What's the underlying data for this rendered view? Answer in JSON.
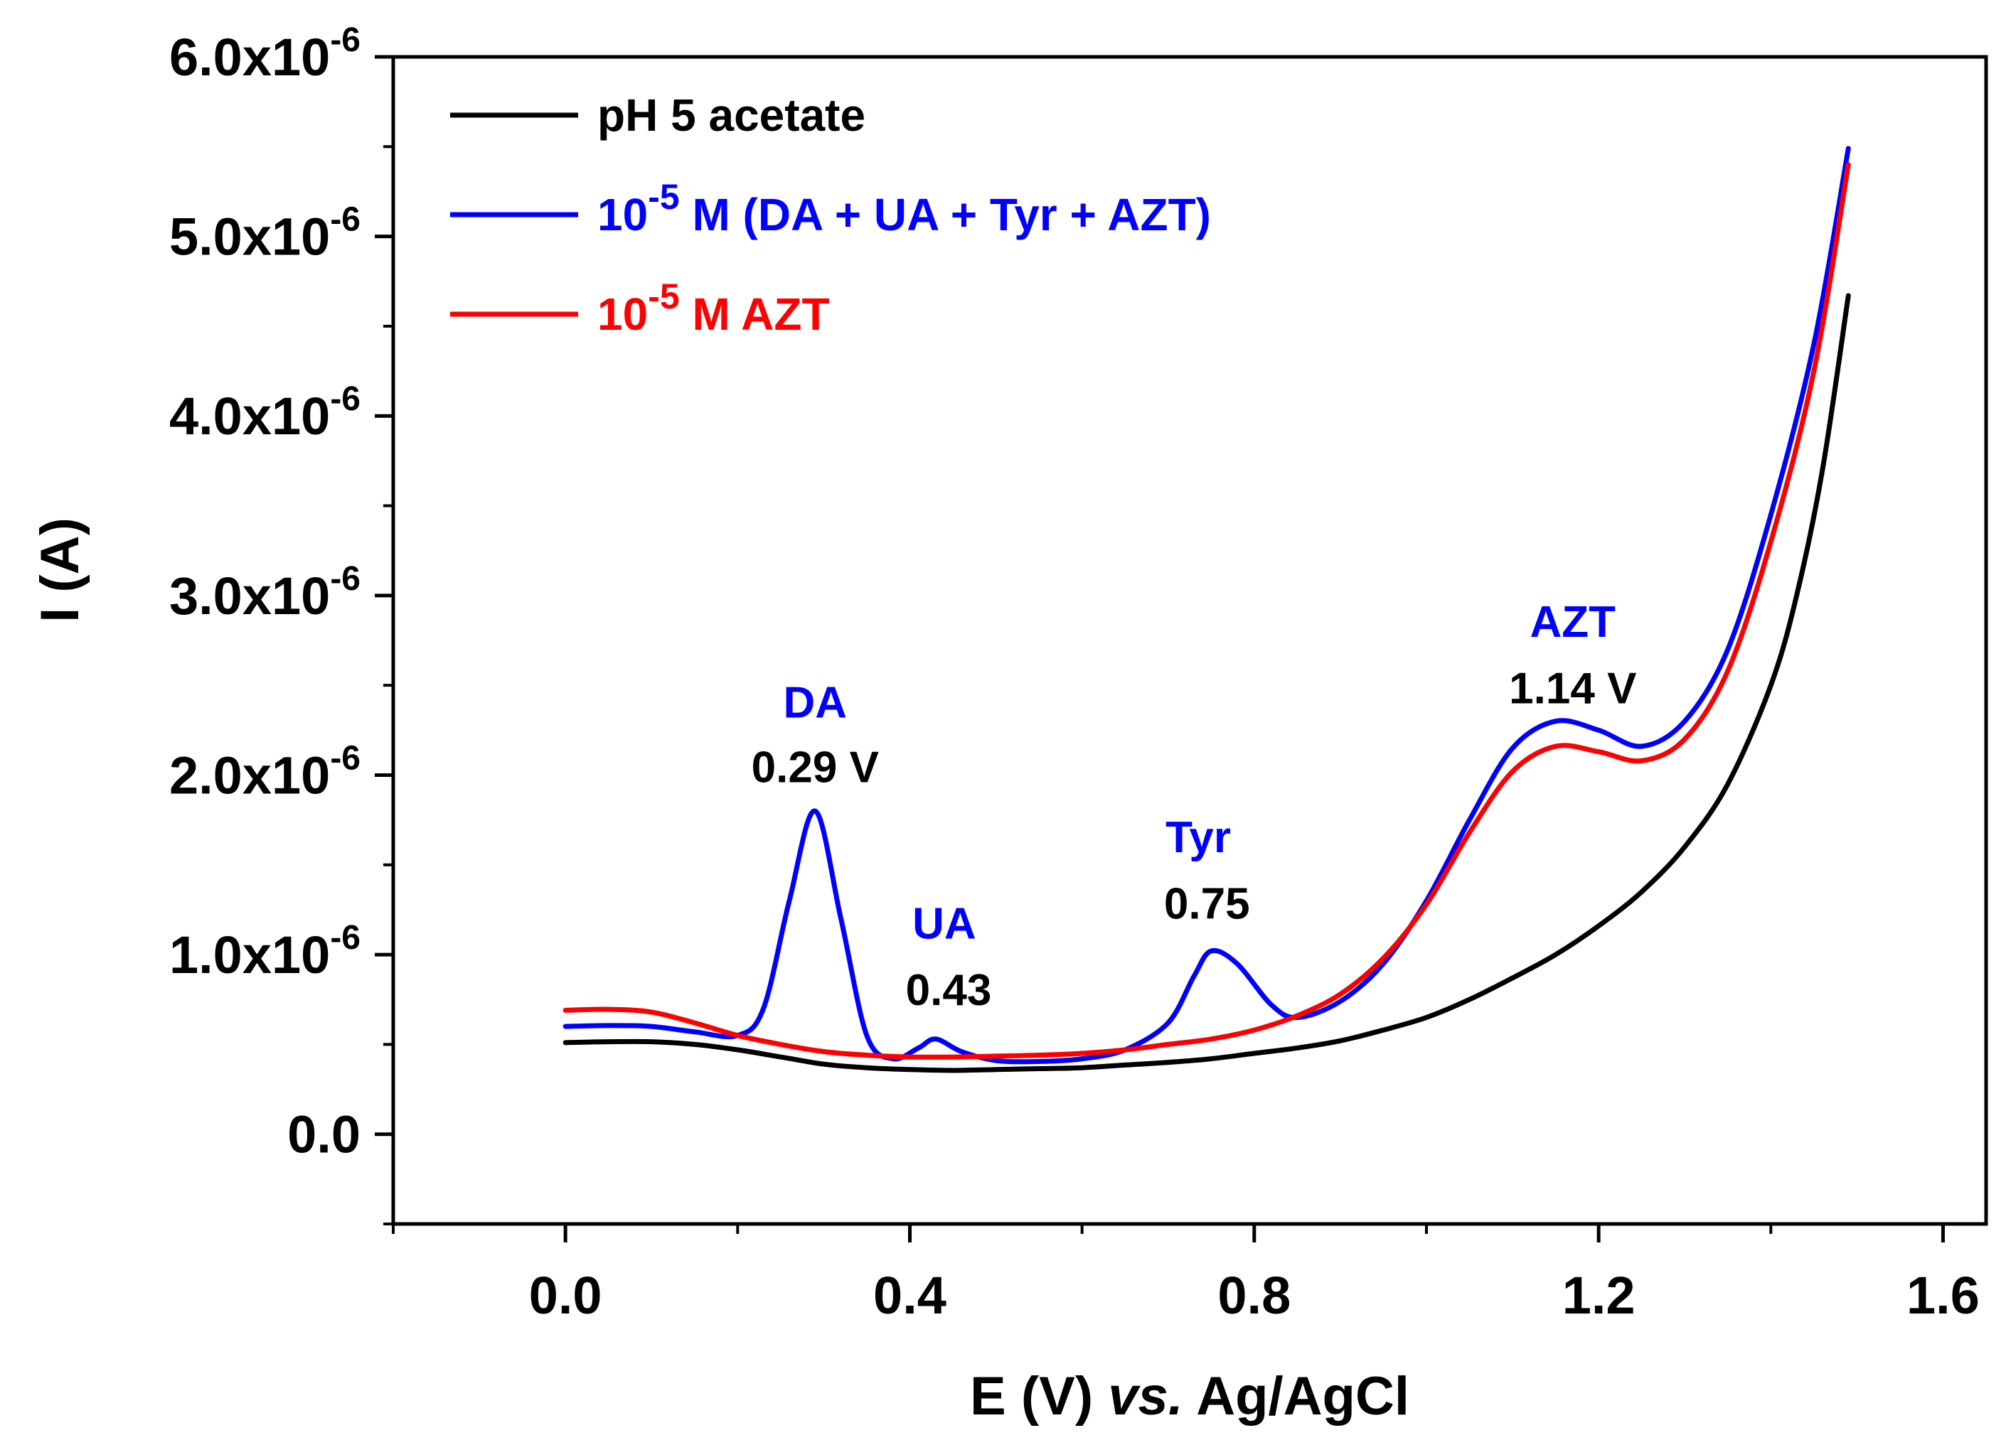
{
  "chart_data": {
    "type": "line",
    "title": "",
    "xlabel": {
      "prefix": "E (V) ",
      "italic": "vs.",
      "suffix": " Ag/AgCl"
    },
    "ylabel": "I (A)",
    "xlim": [
      -0.2,
      1.65
    ],
    "ylim": [
      -0.5,
      6.0
    ],
    "x_ticks": [
      {
        "value": 0.0,
        "label": "0.0"
      },
      {
        "value": 0.4,
        "label": "0.4"
      },
      {
        "value": 0.8,
        "label": "0.8"
      },
      {
        "value": 1.2,
        "label": "1.2"
      },
      {
        "value": 1.6,
        "label": "1.6"
      }
    ],
    "y_ticks": [
      {
        "value": 0.0,
        "mantissa": "0.0",
        "exponent": ""
      },
      {
        "value": 1.0,
        "mantissa": "1.0x10",
        "exponent": "-6"
      },
      {
        "value": 2.0,
        "mantissa": "2.0x10",
        "exponent": "-6"
      },
      {
        "value": 3.0,
        "mantissa": "3.0x10",
        "exponent": "-6"
      },
      {
        "value": 4.0,
        "mantissa": "4.0x10",
        "exponent": "-6"
      },
      {
        "value": 5.0,
        "mantissa": "5.0x10",
        "exponent": "-6"
      },
      {
        "value": 6.0,
        "mantissa": "6.0x10",
        "exponent": "-6"
      }
    ],
    "y_unit_note": "values in units of 1e-6 A",
    "legend_position": "top-left",
    "series": [
      {
        "name": "pH 5 acetate",
        "color": "#000000",
        "legend_parts": [
          {
            "text": "pH 5 acetate",
            "sup": ""
          }
        ],
        "points": [
          [
            0.0,
            0.51
          ],
          [
            0.05,
            0.515
          ],
          [
            0.1,
            0.515
          ],
          [
            0.15,
            0.5
          ],
          [
            0.2,
            0.47
          ],
          [
            0.25,
            0.43
          ],
          [
            0.3,
            0.39
          ],
          [
            0.35,
            0.37
          ],
          [
            0.4,
            0.36
          ],
          [
            0.45,
            0.355
          ],
          [
            0.5,
            0.36
          ],
          [
            0.55,
            0.365
          ],
          [
            0.6,
            0.37
          ],
          [
            0.65,
            0.385
          ],
          [
            0.7,
            0.4
          ],
          [
            0.75,
            0.42
          ],
          [
            0.8,
            0.45
          ],
          [
            0.85,
            0.48
          ],
          [
            0.9,
            0.52
          ],
          [
            0.95,
            0.58
          ],
          [
            1.0,
            0.65
          ],
          [
            1.05,
            0.75
          ],
          [
            1.1,
            0.87
          ],
          [
            1.15,
            1.0
          ],
          [
            1.2,
            1.16
          ],
          [
            1.25,
            1.35
          ],
          [
            1.3,
            1.6
          ],
          [
            1.35,
            1.95
          ],
          [
            1.4,
            2.5
          ],
          [
            1.43,
            3.0
          ],
          [
            1.46,
            3.7
          ],
          [
            1.49,
            4.67
          ]
        ]
      },
      {
        "name": "10-5 M (DA + UA + Tyr + AZT)",
        "color": "#0000ff",
        "legend_parts": [
          {
            "text": "10",
            "sup": "-5"
          },
          {
            "text": " M (DA + UA + Tyr + AZT)",
            "sup": ""
          }
        ],
        "points": [
          [
            0.0,
            0.6
          ],
          [
            0.05,
            0.605
          ],
          [
            0.1,
            0.6
          ],
          [
            0.15,
            0.57
          ],
          [
            0.2,
            0.55
          ],
          [
            0.23,
            0.7
          ],
          [
            0.26,
            1.3
          ],
          [
            0.29,
            1.8
          ],
          [
            0.32,
            1.2
          ],
          [
            0.35,
            0.55
          ],
          [
            0.38,
            0.42
          ],
          [
            0.41,
            0.48
          ],
          [
            0.43,
            0.53
          ],
          [
            0.46,
            0.46
          ],
          [
            0.5,
            0.41
          ],
          [
            0.55,
            0.405
          ],
          [
            0.6,
            0.42
          ],
          [
            0.65,
            0.47
          ],
          [
            0.7,
            0.62
          ],
          [
            0.73,
            0.88
          ],
          [
            0.75,
            1.02
          ],
          [
            0.78,
            0.95
          ],
          [
            0.82,
            0.72
          ],
          [
            0.85,
            0.65
          ],
          [
            0.9,
            0.74
          ],
          [
            0.95,
            0.95
          ],
          [
            1.0,
            1.3
          ],
          [
            1.05,
            1.75
          ],
          [
            1.1,
            2.15
          ],
          [
            1.15,
            2.3
          ],
          [
            1.2,
            2.25
          ],
          [
            1.25,
            2.16
          ],
          [
            1.3,
            2.3
          ],
          [
            1.35,
            2.7
          ],
          [
            1.4,
            3.45
          ],
          [
            1.45,
            4.4
          ],
          [
            1.49,
            5.49
          ]
        ]
      },
      {
        "name": "10-5 M AZT",
        "color": "#ff0000",
        "legend_parts": [
          {
            "text": "10",
            "sup": "-5"
          },
          {
            "text": " M AZT",
            "sup": ""
          }
        ],
        "points": [
          [
            0.0,
            0.69
          ],
          [
            0.05,
            0.695
          ],
          [
            0.1,
            0.68
          ],
          [
            0.15,
            0.62
          ],
          [
            0.2,
            0.55
          ],
          [
            0.25,
            0.5
          ],
          [
            0.3,
            0.46
          ],
          [
            0.35,
            0.44
          ],
          [
            0.4,
            0.43
          ],
          [
            0.45,
            0.43
          ],
          [
            0.5,
            0.435
          ],
          [
            0.55,
            0.44
          ],
          [
            0.6,
            0.45
          ],
          [
            0.65,
            0.47
          ],
          [
            0.7,
            0.5
          ],
          [
            0.75,
            0.53
          ],
          [
            0.8,
            0.58
          ],
          [
            0.85,
            0.66
          ],
          [
            0.9,
            0.78
          ],
          [
            0.95,
            0.98
          ],
          [
            1.0,
            1.28
          ],
          [
            1.05,
            1.68
          ],
          [
            1.1,
            2.02
          ],
          [
            1.15,
            2.16
          ],
          [
            1.2,
            2.13
          ],
          [
            1.25,
            2.08
          ],
          [
            1.3,
            2.2
          ],
          [
            1.35,
            2.58
          ],
          [
            1.4,
            3.3
          ],
          [
            1.45,
            4.25
          ],
          [
            1.49,
            5.4
          ]
        ]
      }
    ],
    "annotations": [
      {
        "text": "DA",
        "x": 0.29,
        "y": 2.32,
        "color": "#0000ff"
      },
      {
        "text": "0.29 V",
        "x": 0.29,
        "y": 1.96,
        "color": "#000000"
      },
      {
        "text": "UA",
        "x": 0.44,
        "y": 1.09,
        "color": "#0000ff"
      },
      {
        "text": "0.43",
        "x": 0.445,
        "y": 0.72,
        "color": "#000000"
      },
      {
        "text": "Tyr",
        "x": 0.735,
        "y": 1.57,
        "color": "#0000ff"
      },
      {
        "text": "0.75",
        "x": 0.745,
        "y": 1.2,
        "color": "#000000"
      },
      {
        "text": "AZT",
        "x": 1.17,
        "y": 2.77,
        "color": "#0000ff"
      },
      {
        "text": "1.14 V",
        "x": 1.17,
        "y": 2.4,
        "color": "#000000"
      }
    ]
  }
}
